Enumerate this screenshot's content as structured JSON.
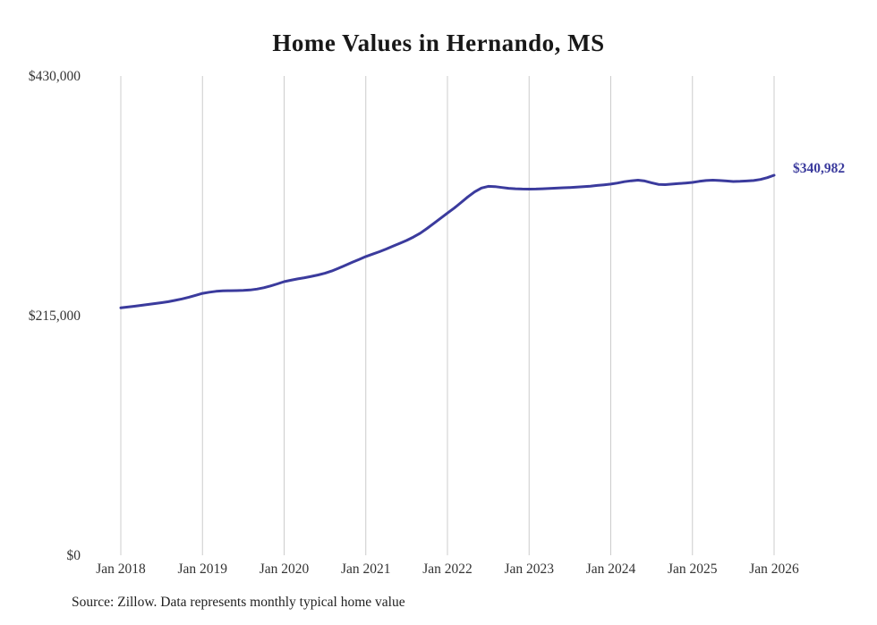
{
  "title": "Home Values in Hernando, MS",
  "end_label": "$340,982",
  "source_note": "Source: Zillow. Data represents monthly typical home value",
  "colors": {
    "line": "#3b3b9d",
    "grid": "#cccccc",
    "axis_text": "#333333",
    "title_text": "#181818"
  },
  "chart_data": {
    "type": "line",
    "title": "Home Values in Hernando, MS",
    "xlabel": "",
    "ylabel": "",
    "ylim": [
      0,
      430000
    ],
    "y_ticks": [
      0,
      215000,
      430000
    ],
    "y_tick_labels": [
      "$0",
      "$215,000",
      "$430,000"
    ],
    "x_tick_labels": [
      "Jan 2018",
      "Jan 2019",
      "Jan 2020",
      "Jan 2021",
      "Jan 2022",
      "Jan 2023",
      "Jan 2024",
      "Jan 2025",
      "Jan 2026"
    ],
    "grid": "vertical-only",
    "legend": false,
    "series": [
      {
        "name": "Typical home value (monthly)",
        "x_start": "2018-01",
        "x_end": "2026-01",
        "interval": "monthly",
        "final_value": 340982,
        "values": [
          222000,
          222700,
          223400,
          224200,
          225000,
          225800,
          226600,
          227500,
          228700,
          230000,
          231500,
          233200,
          235000,
          236000,
          236800,
          237200,
          237400,
          237500,
          237600,
          238000,
          238800,
          240000,
          241600,
          243500,
          245500,
          246800,
          248000,
          249000,
          250200,
          251500,
          253000,
          255000,
          257500,
          260200,
          262800,
          265400,
          268000,
          270200,
          272400,
          274800,
          277300,
          279900,
          282500,
          285500,
          289000,
          293200,
          297800,
          302400,
          307000,
          311500,
          316500,
          321500,
          326000,
          329500,
          331000,
          330800,
          330000,
          329200,
          328800,
          328600,
          328500,
          328600,
          328800,
          329100,
          329400,
          329700,
          330000,
          330300,
          330700,
          331200,
          331800,
          332400,
          333000,
          334000,
          335200,
          336000,
          336500,
          335800,
          334200,
          332800,
          332500,
          333000,
          333500,
          334000,
          334500,
          335500,
          336200,
          336500,
          336200,
          335800,
          335300,
          335500,
          335800,
          336200,
          337200,
          338800,
          340982
        ]
      }
    ]
  }
}
